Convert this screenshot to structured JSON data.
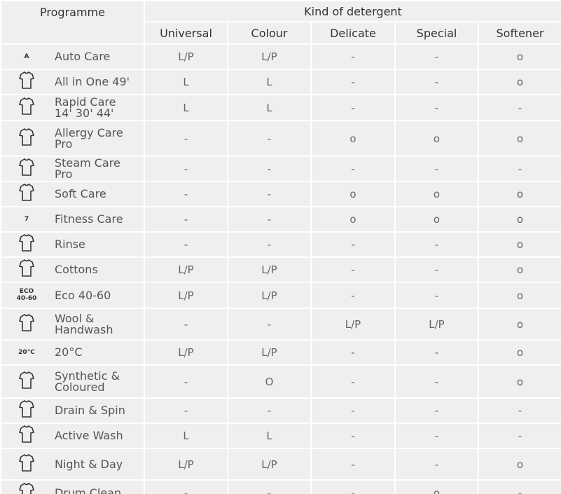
{
  "header": {
    "programme": "Programme",
    "group": "Kind of detergent",
    "columns": [
      "Universal",
      "Colour",
      "Delicate",
      "Special",
      "Softener"
    ]
  },
  "rows": [
    {
      "name": "Auto Care",
      "icon_text": [
        "A"
      ],
      "cells": [
        "L/P",
        "L/P",
        "-",
        "-",
        "o"
      ]
    },
    {
      "name": "All in One 49'",
      "cells": [
        "L",
        "L",
        "-",
        "-",
        "o"
      ]
    },
    {
      "name": "Rapid Care\n14' 30' 44'",
      "cells": [
        "L",
        "L",
        "-",
        "-",
        "-"
      ]
    },
    {
      "name": "Allergy Care\nPro",
      "cells": [
        "-",
        "-",
        "o",
        "o",
        "o"
      ]
    },
    {
      "name": "Steam Care\nPro",
      "cells": [
        "-",
        "-",
        "-",
        "-",
        "-"
      ]
    },
    {
      "name": "Soft Care",
      "cells": [
        "-",
        "-",
        "o",
        "o",
        "o"
      ]
    },
    {
      "name": "Fitness Care",
      "icon_text": [
        "7"
      ],
      "cells": [
        "-",
        "-",
        "o",
        "o",
        "o"
      ]
    },
    {
      "name": "Rinse",
      "cells": [
        "-",
        "-",
        "-",
        "-",
        "o"
      ]
    },
    {
      "name": "Cottons",
      "cells": [
        "L/P",
        "L/P",
        "-",
        "-",
        "o"
      ]
    },
    {
      "name": "Eco 40-60",
      "icon_text": [
        "ECO",
        "40-60"
      ],
      "cells": [
        "L/P",
        "L/P",
        "-",
        "-",
        "o"
      ]
    },
    {
      "name": "Wool &\nHandwash",
      "cells": [
        "-",
        "-",
        "L/P",
        "L/P",
        "o"
      ]
    },
    {
      "name": "20°C",
      "icon_text": [
        "20°C"
      ],
      "cells": [
        "L/P",
        "L/P",
        "-",
        "-",
        "o"
      ]
    },
    {
      "name": "Synthetic &\nColoured",
      "cells": [
        "-",
        "O",
        "-",
        "-",
        "o"
      ]
    },
    {
      "name": "Drain & Spin",
      "cells": [
        "-",
        "-",
        "-",
        "-",
        "-"
      ]
    },
    {
      "name": "Active Wash",
      "cells": [
        "L",
        "L",
        "-",
        "-",
        "-"
      ]
    },
    {
      "name": "Night & Day",
      "cells": [
        "L/P",
        "L/P",
        "-",
        "-",
        "o"
      ]
    },
    {
      "name": "Drum Clean",
      "cells": [
        "-",
        "-",
        "-",
        "o",
        "-"
      ]
    }
  ]
}
